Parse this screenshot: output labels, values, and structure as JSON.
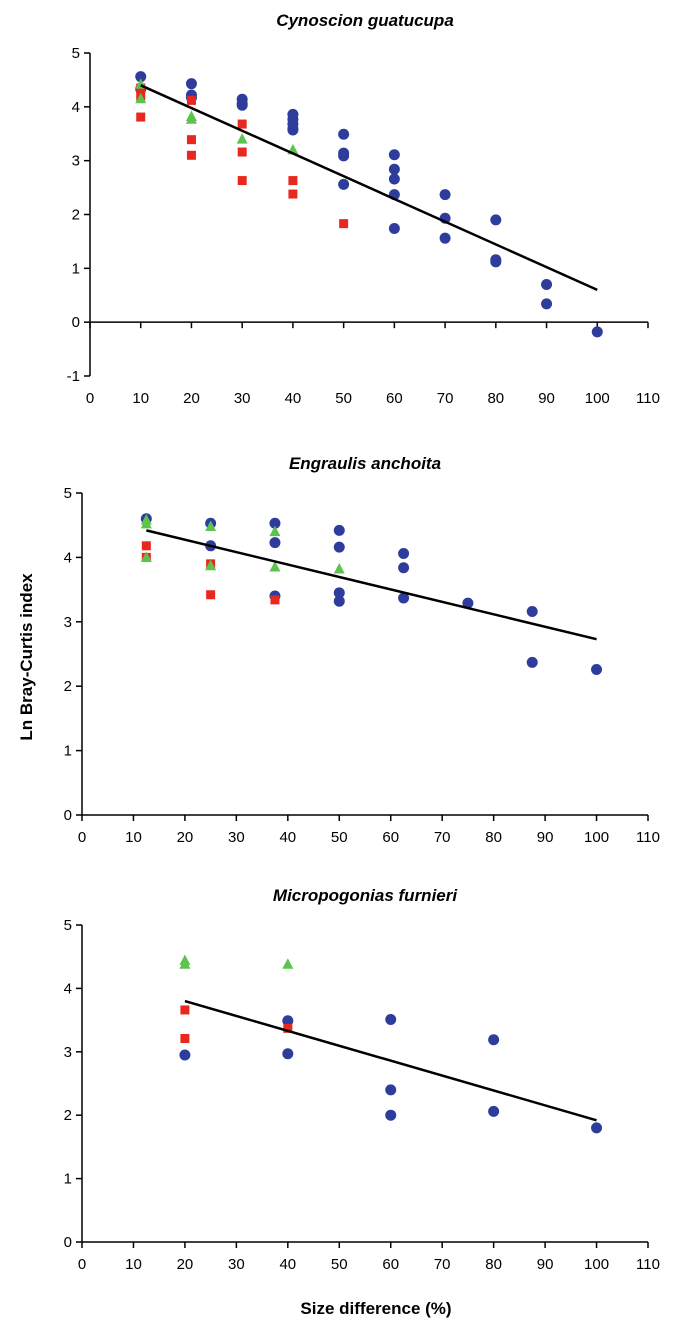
{
  "figure": {
    "ylabel": "Ln Bray-Curtis index",
    "xlabel": "Size difference (%)"
  },
  "colors": {
    "circle": "#2E3D9B",
    "square": "#E8281E",
    "triangle": "#5DC34E",
    "trend": "#000000"
  },
  "chart_data": [
    {
      "type": "scatter",
      "title": "Cynoscion guatucupa",
      "xlim": [
        0,
        110
      ],
      "ylim": [
        -1,
        5
      ],
      "xticks": [
        0,
        10,
        20,
        30,
        40,
        50,
        60,
        70,
        80,
        90,
        100,
        110
      ],
      "yticks": [
        -1,
        0,
        1,
        2,
        3,
        4,
        5
      ],
      "series": [
        {
          "marker": "circle",
          "x": [
            10,
            10,
            20,
            20,
            20,
            30,
            30,
            30,
            40,
            40,
            40,
            40,
            40,
            50,
            50,
            50,
            50,
            60,
            60,
            60,
            60,
            60,
            70,
            70,
            70,
            80,
            80,
            80,
            90,
            90,
            100
          ],
          "y": [
            4.56,
            4.33,
            4.43,
            4.22,
            4.17,
            4.14,
            4.06,
            4.03,
            3.86,
            3.77,
            3.68,
            3.6,
            3.57,
            3.49,
            3.14,
            3.09,
            2.56,
            3.11,
            2.84,
            2.66,
            2.37,
            1.74,
            2.37,
            1.93,
            1.56,
            1.9,
            1.16,
            1.12,
            0.7,
            0.34,
            -0.18
          ]
        },
        {
          "marker": "square",
          "x": [
            10,
            10,
            10,
            20,
            20,
            20,
            30,
            30,
            30,
            40,
            40,
            50
          ],
          "y": [
            4.35,
            4.2,
            3.81,
            4.12,
            3.39,
            3.1,
            3.68,
            3.16,
            2.63,
            2.63,
            2.38,
            1.83
          ]
        },
        {
          "marker": "triangle",
          "x": [
            10,
            10,
            20,
            20,
            30,
            40
          ],
          "y": [
            4.42,
            4.15,
            3.82,
            3.77,
            3.4,
            3.2
          ]
        }
      ],
      "trendline": {
        "x": [
          10,
          100
        ],
        "y": [
          4.4,
          0.6
        ]
      }
    },
    {
      "type": "scatter",
      "title": "Engraulis anchoita",
      "xlim": [
        0,
        110
      ],
      "ylim": [
        0,
        5
      ],
      "xticks": [
        0,
        10,
        20,
        30,
        40,
        50,
        60,
        70,
        80,
        90,
        100,
        110
      ],
      "yticks": [
        0,
        1,
        2,
        3,
        4,
        5
      ],
      "series": [
        {
          "marker": "circle",
          "x": [
            12.5,
            25,
            25,
            37.5,
            37.5,
            37.5,
            50,
            50,
            50,
            50,
            62.5,
            62.5,
            62.5,
            75,
            87.5,
            87.5,
            100
          ],
          "y": [
            4.6,
            4.53,
            4.18,
            4.53,
            4.23,
            3.4,
            4.42,
            4.16,
            3.45,
            3.32,
            4.06,
            3.84,
            3.37,
            3.29,
            3.16,
            2.37,
            2.26
          ]
        },
        {
          "marker": "square",
          "x": [
            12.5,
            12.5,
            25,
            25,
            37.5
          ],
          "y": [
            4.18,
            4.0,
            3.9,
            3.42,
            3.34
          ]
        },
        {
          "marker": "triangle",
          "x": [
            12.5,
            12.5,
            12.5,
            25,
            25,
            37.5,
            37.5,
            50
          ],
          "y": [
            4.58,
            4.52,
            4.0,
            4.48,
            3.87,
            4.4,
            3.85,
            3.82
          ]
        }
      ],
      "trendline": {
        "x": [
          12.5,
          100
        ],
        "y": [
          4.42,
          2.73
        ]
      }
    },
    {
      "type": "scatter",
      "title": "Micropogonias furnieri",
      "xlim": [
        0,
        110
      ],
      "ylim": [
        0,
        5
      ],
      "xticks": [
        0,
        10,
        20,
        30,
        40,
        50,
        60,
        70,
        80,
        90,
        100,
        110
      ],
      "yticks": [
        0,
        1,
        2,
        3,
        4,
        5
      ],
      "series": [
        {
          "marker": "circle",
          "x": [
            20,
            40,
            40,
            60,
            60,
            60,
            80,
            80,
            100
          ],
          "y": [
            2.95,
            3.49,
            2.97,
            3.51,
            2.4,
            2.0,
            3.19,
            2.06,
            1.8
          ]
        },
        {
          "marker": "square",
          "x": [
            20,
            20,
            40
          ],
          "y": [
            3.66,
            3.21,
            3.37
          ]
        },
        {
          "marker": "triangle",
          "x": [
            20,
            20,
            40
          ],
          "y": [
            4.44,
            4.38,
            4.38
          ]
        }
      ],
      "trendline": {
        "x": [
          20,
          100
        ],
        "y": [
          3.8,
          1.92
        ]
      }
    }
  ]
}
